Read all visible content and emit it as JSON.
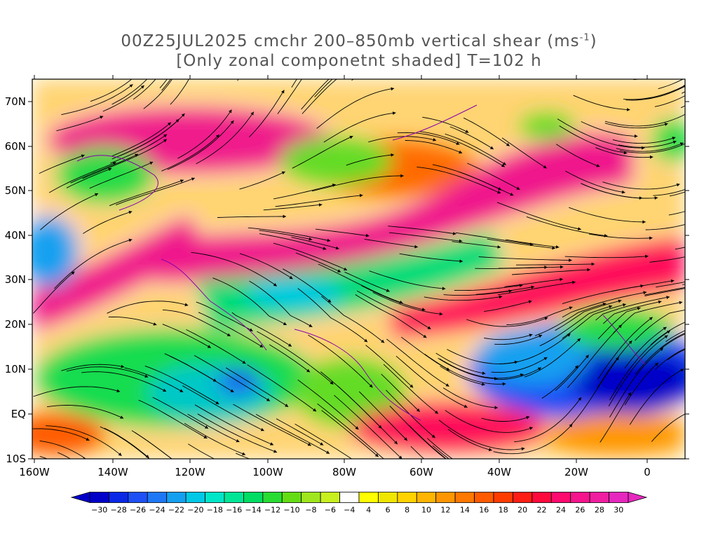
{
  "title": {
    "line1_prefix": "00Z25JUL2025 cmchr 200–850mb vertical shear (ms",
    "line1_sup": "-1",
    "line1_suffix": ")",
    "line2": "[Only zonal componetnt shaded] T=102 h"
  },
  "axes": {
    "lon_labels": [
      "160W",
      "140W",
      "120W",
      "100W",
      "80W",
      "60W",
      "40W",
      "20W",
      "0"
    ],
    "lat_labels": [
      "70N",
      "60N",
      "50N",
      "40N",
      "30N",
      "20N",
      "10N",
      "EQ",
      "10S"
    ]
  },
  "colorbar": {
    "labels": [
      "-30",
      "-28",
      "-26",
      "-24",
      "-22",
      "-20",
      "-18",
      "-16",
      "-14",
      "-12",
      "-10",
      "-8",
      "-6",
      "-4",
      "4",
      "6",
      "8",
      "10",
      "12",
      "14",
      "16",
      "18",
      "20",
      "22",
      "24",
      "26",
      "28",
      "30"
    ],
    "colors": [
      "#0000c8",
      "#0a28e6",
      "#1e50f5",
      "#1e78f5",
      "#14a0f0",
      "#00c8e6",
      "#00e6c8",
      "#00e696",
      "#00dc64",
      "#28dc32",
      "#64dc14",
      "#a0e61e",
      "#c8f01e",
      "#ffffff",
      "#ffff00",
      "#f0e600",
      "#ffd200",
      "#ffb400",
      "#ff9600",
      "#ff7800",
      "#ff5a00",
      "#ff3c00",
      "#ff1e14",
      "#ff0a3c",
      "#ff0a6e",
      "#f5148c",
      "#f01ea0",
      "#e628be"
    ]
  },
  "legend_colors": {
    "streamline": "#000000",
    "coastline": "#8800aa"
  }
}
